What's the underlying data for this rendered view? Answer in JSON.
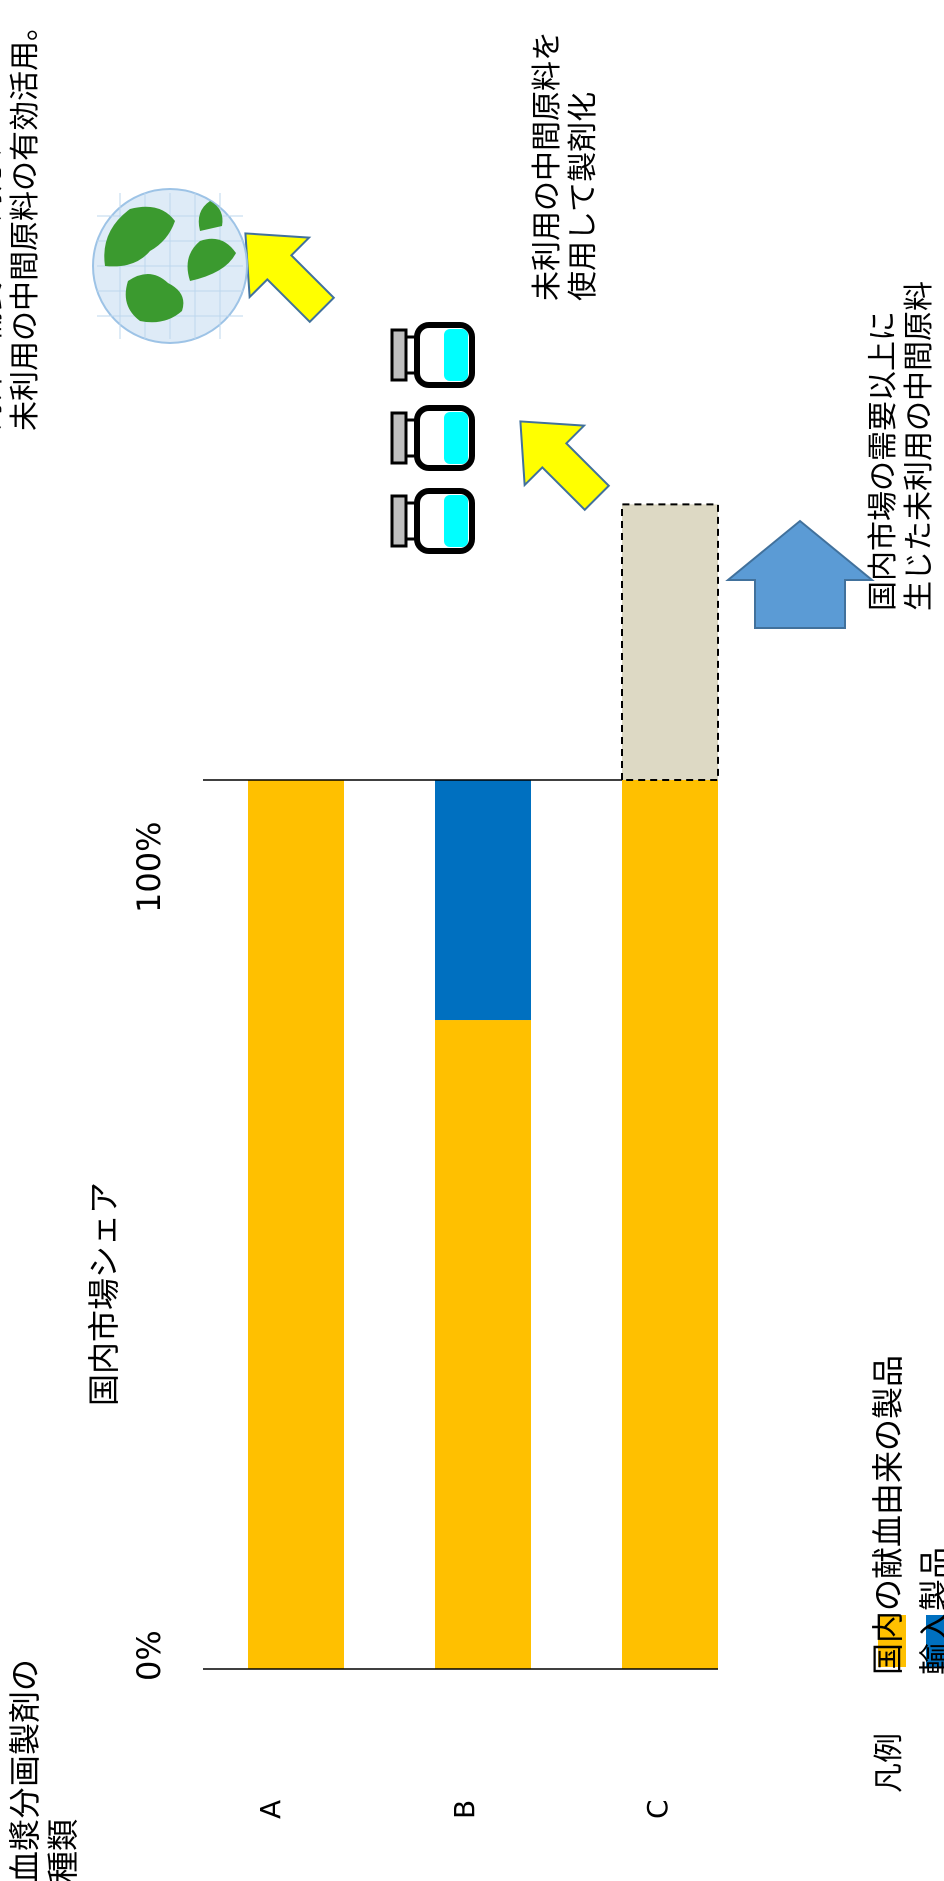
{
  "chart_data": {
    "type": "bar",
    "orientation": "horizontal-stacked",
    "title": "血漿分画製剤の\n種類",
    "xlabel": "国内市場シェア",
    "x_ticks": [
      "0%",
      "100%"
    ],
    "xlim": [
      0,
      100
    ],
    "categories": [
      "A",
      "B",
      "C"
    ],
    "series": [
      {
        "name": "国内の献血由来の製品",
        "color": "#FFC000",
        "values": [
          100,
          73,
          100
        ]
      },
      {
        "name": "輸入製品",
        "color": "#0070C0",
        "values": [
          0,
          27,
          0
        ]
      }
    ],
    "excess": {
      "category": "C",
      "start": 100,
      "value": 31,
      "color": "#DDD9C4"
    },
    "legend": {
      "title": "凡例",
      "position": "bottom"
    },
    "annotations": {
      "excess_label": "国内市場の需要以上に\n生じた未利用の中間原料",
      "production_label": "未利用の中間原料を\n使用して製剤化",
      "export_label": "海外の需要への対応、\n未利用の中間原料の有効活用。"
    }
  }
}
